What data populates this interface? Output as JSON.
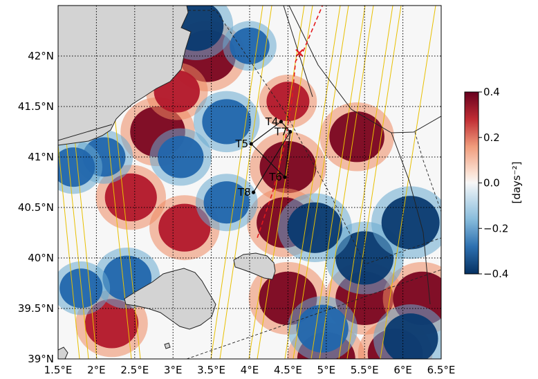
{
  "map": {
    "extent": {
      "lon": [
        1.5,
        6.5
      ],
      "lat": [
        39.0,
        42.5
      ]
    },
    "lon_ticks": [
      1.5,
      2.0,
      2.5,
      3.0,
      3.5,
      4.0,
      4.5,
      5.0,
      5.5,
      6.0,
      6.5
    ],
    "lon_tick_labels": [
      "1.5°E",
      "2°E",
      "2.5°E",
      "3°E",
      "3.5°E",
      "4°E",
      "4.5°E",
      "5°E",
      "5.5°E",
      "6°E",
      "6.5°E"
    ],
    "lat_ticks": [
      39.0,
      39.5,
      40.0,
      40.5,
      41.0,
      41.5,
      42.0
    ],
    "lat_tick_labels": [
      "39°N",
      "39.5°N",
      "40°N",
      "40.5°N",
      "41°N",
      "41.5°N",
      "42°N"
    ],
    "grid": true,
    "colors": {
      "land": "#d3d3d3",
      "ocean_neutral": "#f7f7f7",
      "positive": "#67001f",
      "negative": "#053061",
      "swath": "#e8c000",
      "track": "#e41a1c"
    },
    "stations": [
      {
        "name": "T4",
        "lon": 4.41,
        "lat": 41.35
      },
      {
        "name": "T7",
        "lon": 4.53,
        "lat": 41.25
      },
      {
        "name": "T5",
        "lon": 4.02,
        "lat": 41.13
      },
      {
        "name": "T6",
        "lon": 4.46,
        "lat": 40.8
      },
      {
        "name": "T8",
        "lon": 4.05,
        "lat": 40.65
      }
    ],
    "ship_track": [
      [
        4.1,
        40.2
      ],
      [
        4.3,
        40.65
      ],
      [
        4.45,
        41.1
      ],
      [
        4.55,
        41.55
      ],
      [
        4.6,
        41.95
      ],
      [
        4.7,
        42.05
      ],
      [
        4.95,
        42.5
      ]
    ],
    "cross_marker": {
      "lon": 4.65,
      "lat": 42.03
    },
    "fronts": [
      {
        "lon": 5.0,
        "lat": 39.0,
        "amp": 1
      },
      {
        "lon": 5.5,
        "lat": 39.6,
        "amp": 1
      },
      {
        "lon": 4.5,
        "lat": 39.6,
        "amp": 1
      },
      {
        "lon": 6.25,
        "lat": 39.6,
        "amp": 1
      },
      {
        "lon": 5.9,
        "lat": 39.05,
        "amp": 0.9
      },
      {
        "lon": 2.2,
        "lat": 39.35,
        "amp": 0.85
      },
      {
        "lon": 2.8,
        "lat": 41.25,
        "amp": 0.9
      },
      {
        "lon": 2.45,
        "lat": 40.6,
        "amp": 0.8
      },
      {
        "lon": 3.15,
        "lat": 40.3,
        "amp": 0.8
      },
      {
        "lon": 4.5,
        "lat": 40.9,
        "amp": 0.95
      },
      {
        "lon": 5.4,
        "lat": 41.2,
        "amp": 0.9
      },
      {
        "lon": 3.45,
        "lat": 42.0,
        "amp": 0.95
      },
      {
        "lon": 4.45,
        "lat": 40.35,
        "amp": 0.9
      },
      {
        "lon": 4.5,
        "lat": 41.55,
        "amp": 0.5
      },
      {
        "lon": 3.05,
        "lat": 41.65,
        "amp": 0.6
      },
      {
        "lon": 5.5,
        "lat": 40.0,
        "amp": -1
      },
      {
        "lon": 6.1,
        "lat": 40.35,
        "amp": -1
      },
      {
        "lon": 4.85,
        "lat": 40.3,
        "amp": -0.9
      },
      {
        "lon": 6.1,
        "lat": 39.2,
        "amp": -0.9
      },
      {
        "lon": 4.95,
        "lat": 39.3,
        "amp": -0.8
      },
      {
        "lon": 3.3,
        "lat": 42.3,
        "amp": -0.9
      },
      {
        "lon": 3.7,
        "lat": 41.35,
        "amp": -0.7
      },
      {
        "lon": 3.1,
        "lat": 41.0,
        "amp": -0.6
      },
      {
        "lon": 2.1,
        "lat": 41.0,
        "amp": -0.5
      },
      {
        "lon": 1.7,
        "lat": 40.9,
        "amp": -0.5
      },
      {
        "lon": 2.4,
        "lat": 39.8,
        "amp": -0.7
      },
      {
        "lon": 3.7,
        "lat": 40.55,
        "amp": -0.6
      },
      {
        "lon": 1.8,
        "lat": 39.7,
        "amp": -0.5
      },
      {
        "lon": 4.0,
        "lat": 42.1,
        "amp": -0.4
      }
    ]
  },
  "colorbar": {
    "label": "[days⁻²]",
    "range": [
      -0.4,
      0.4
    ],
    "ticks": [
      0.4,
      0.2,
      0.0,
      -0.2,
      -0.4
    ],
    "tick_labels": [
      "0.4",
      "0.2",
      "0.0",
      "−0.2",
      "−0.4"
    ]
  }
}
